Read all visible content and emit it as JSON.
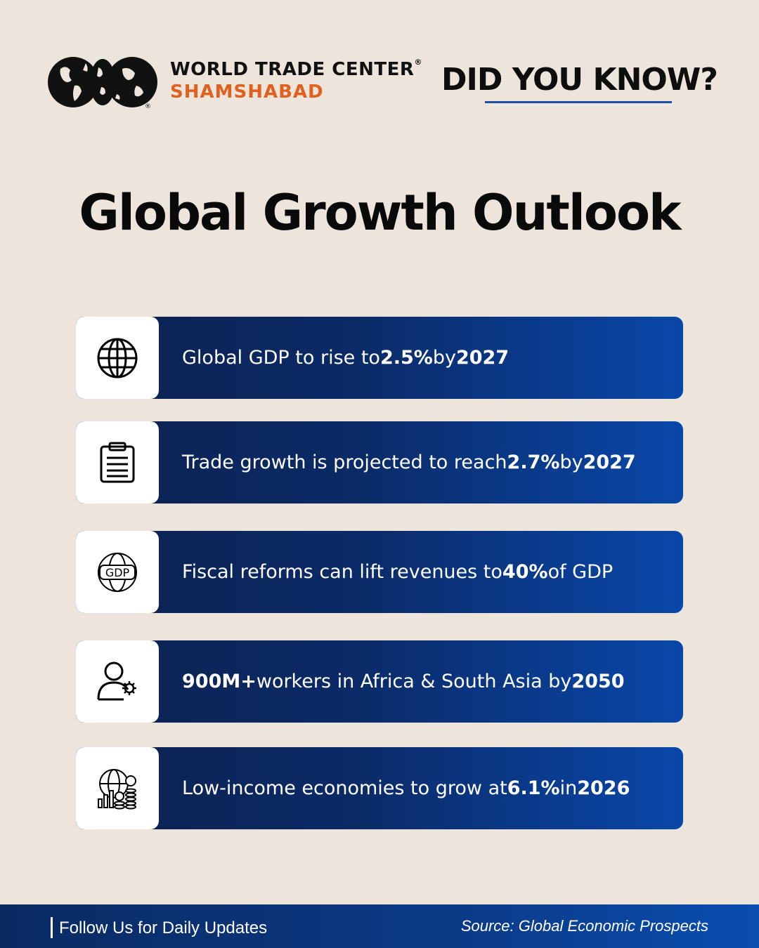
{
  "header": {
    "brand_line1": "WORLD TRADE CENTER",
    "brand_registered": "®",
    "brand_line2": "SHAMSHABAD",
    "tagline": "DID YOU KNOW?"
  },
  "title": "Global Growth Outlook",
  "facts": [
    {
      "icon": "globe-icon",
      "parts": [
        "Global GDP to rise to ",
        "2.5%",
        " by ",
        "2027",
        ""
      ]
    },
    {
      "icon": "clipboard-icon",
      "parts": [
        "Trade growth is projected to reach ",
        "2.7%",
        " by ",
        "2027",
        ""
      ]
    },
    {
      "icon": "gdp-globe-icon",
      "icon_label": "GDP",
      "parts": [
        "Fiscal reforms can lift revenues to ",
        "40%",
        " of GDP",
        "",
        ""
      ]
    },
    {
      "icon": "worker-gear-icon",
      "parts": [
        "",
        "900M+",
        " workers in Africa & South Asia by ",
        "2050",
        ""
      ]
    },
    {
      "icon": "economy-growth-icon",
      "parts": [
        "Low-income economies to grow at ",
        "6.1%",
        " in ",
        "2026",
        ""
      ]
    }
  ],
  "footer": {
    "follow": "Follow Us for Daily Updates",
    "source": "Source: Global Economic Prospects"
  },
  "colors": {
    "background": "#ede5dc",
    "accent_orange": "#e0601d",
    "card_dark": "#0c2250",
    "card_light": "#0a47a9",
    "underline": "#1f4ea8"
  }
}
